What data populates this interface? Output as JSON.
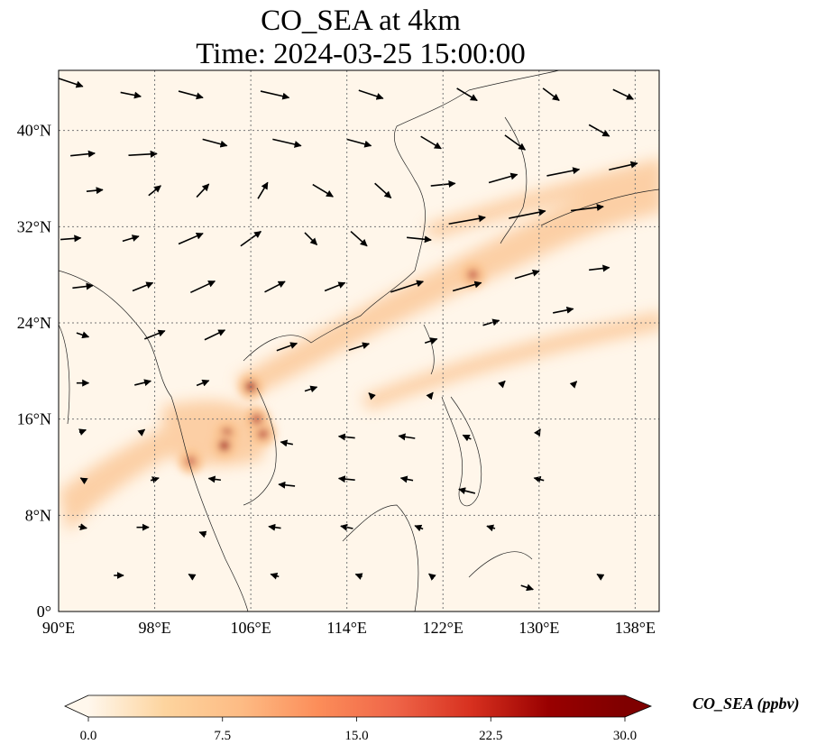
{
  "title": {
    "line1": "CO_SEA at 4km",
    "line2": "Time: 2024-03-25 15:00:00"
  },
  "map": {
    "lon_range": [
      90,
      140
    ],
    "lat_range": [
      0,
      45
    ],
    "lon_ticks": [
      {
        "value": 90,
        "label": "90°E"
      },
      {
        "value": 98,
        "label": "98°E"
      },
      {
        "value": 106,
        "label": "106°E"
      },
      {
        "value": 114,
        "label": "114°E"
      },
      {
        "value": 122,
        "label": "122°E"
      },
      {
        "value": 130,
        "label": "130°E"
      },
      {
        "value": 138,
        "label": "138°E"
      }
    ],
    "lat_ticks": [
      {
        "value": 0,
        "label": "0°"
      },
      {
        "value": 8,
        "label": "8°N"
      },
      {
        "value": 16,
        "label": "16°N"
      },
      {
        "value": 24,
        "label": "24°N"
      },
      {
        "value": 32,
        "label": "32°N"
      },
      {
        "value": 40,
        "label": "40°N"
      }
    ],
    "gridlines": true,
    "colormap": "OrRd",
    "background_color": "#fff6ea",
    "plume_color": "#fbc38f",
    "hotspot_color": "#a3191c",
    "hotspots": [
      {
        "lon": 106.0,
        "lat": 18.7,
        "intensity": 0.85
      },
      {
        "lon": 104.0,
        "lat": 14.8,
        "intensity": 0.75
      },
      {
        "lon": 103.8,
        "lat": 13.8,
        "intensity": 0.85
      },
      {
        "lon": 107.0,
        "lat": 14.8,
        "intensity": 0.65
      },
      {
        "lon": 106.5,
        "lat": 16.0,
        "intensity": 0.6
      },
      {
        "lon": 124.5,
        "lat": 28.0,
        "intensity": 0.5
      },
      {
        "lon": 101.0,
        "lat": 12.5,
        "intensity": 0.45
      }
    ],
    "winds": [
      {
        "lon": 91,
        "lat": 44,
        "u": 3,
        "v": -1
      },
      {
        "lon": 96,
        "lat": 43,
        "u": 2.5,
        "v": -0.5
      },
      {
        "lon": 101,
        "lat": 43,
        "u": 3,
        "v": -0.8
      },
      {
        "lon": 108,
        "lat": 43,
        "u": 3.5,
        "v": -0.8
      },
      {
        "lon": 116,
        "lat": 43,
        "u": 3,
        "v": -1
      },
      {
        "lon": 124,
        "lat": 43,
        "u": 2.5,
        "v": -1.5
      },
      {
        "lon": 131,
        "lat": 43,
        "u": 2,
        "v": -1.5
      },
      {
        "lon": 137,
        "lat": 43,
        "u": 2.5,
        "v": -1.2
      },
      {
        "lon": 92,
        "lat": 38,
        "u": 3,
        "v": 0.3
      },
      {
        "lon": 97,
        "lat": 38,
        "u": 3.5,
        "v": 0.2
      },
      {
        "lon": 103,
        "lat": 39,
        "u": 3,
        "v": -0.8
      },
      {
        "lon": 109,
        "lat": 39,
        "u": 3.5,
        "v": -0.8
      },
      {
        "lon": 115,
        "lat": 39,
        "u": 3,
        "v": -0.8
      },
      {
        "lon": 121,
        "lat": 39,
        "u": 2.5,
        "v": -1.5
      },
      {
        "lon": 128,
        "lat": 39,
        "u": 2.5,
        "v": -1.8
      },
      {
        "lon": 135,
        "lat": 40,
        "u": 2.5,
        "v": -1.4
      },
      {
        "lon": 93,
        "lat": 35,
        "u": 2,
        "v": 0.2
      },
      {
        "lon": 98,
        "lat": 35,
        "u": 1.5,
        "v": 1.2
      },
      {
        "lon": 102,
        "lat": 35,
        "u": 1.5,
        "v": 1.6
      },
      {
        "lon": 107,
        "lat": 35,
        "u": 1.2,
        "v": 2
      },
      {
        "lon": 112,
        "lat": 35,
        "u": 2.5,
        "v": -1.5
      },
      {
        "lon": 117,
        "lat": 35,
        "u": 2,
        "v": -1.8
      },
      {
        "lon": 122,
        "lat": 35.5,
        "u": 3,
        "v": 0.3
      },
      {
        "lon": 127,
        "lat": 36,
        "u": 3.5,
        "v": 1
      },
      {
        "lon": 132,
        "lat": 36.5,
        "u": 4,
        "v": 0.8
      },
      {
        "lon": 137,
        "lat": 37,
        "u": 3.5,
        "v": 0.8
      },
      {
        "lon": 91,
        "lat": 31,
        "u": 2.5,
        "v": 0.2
      },
      {
        "lon": 96,
        "lat": 31,
        "u": 2,
        "v": 0.6
      },
      {
        "lon": 101,
        "lat": 31,
        "u": 3,
        "v": 1.3
      },
      {
        "lon": 106,
        "lat": 31,
        "u": 2.5,
        "v": 1.8
      },
      {
        "lon": 111,
        "lat": 31,
        "u": 1.5,
        "v": -1.5
      },
      {
        "lon": 115,
        "lat": 31,
        "u": 2,
        "v": -1.8
      },
      {
        "lon": 120,
        "lat": 31,
        "u": 3,
        "v": -0.3
      },
      {
        "lon": 124,
        "lat": 32.5,
        "u": 4.5,
        "v": 0.8
      },
      {
        "lon": 129,
        "lat": 33,
        "u": 4.5,
        "v": 0.9
      },
      {
        "lon": 134,
        "lat": 33.5,
        "u": 4,
        "v": 0.5
      },
      {
        "lon": 92,
        "lat": 27,
        "u": 2.5,
        "v": 0.3
      },
      {
        "lon": 97,
        "lat": 27,
        "u": 2.5,
        "v": 1
      },
      {
        "lon": 102,
        "lat": 27,
        "u": 3,
        "v": 1.4
      },
      {
        "lon": 108,
        "lat": 27,
        "u": 2.5,
        "v": 1.3
      },
      {
        "lon": 113,
        "lat": 27,
        "u": 2.5,
        "v": 1
      },
      {
        "lon": 119,
        "lat": 27,
        "u": 4,
        "v": 1.3
      },
      {
        "lon": 124,
        "lat": 27,
        "u": 3.5,
        "v": 1
      },
      {
        "lon": 129,
        "lat": 28,
        "u": 3,
        "v": 0.9
      },
      {
        "lon": 135,
        "lat": 28.5,
        "u": 2.5,
        "v": 0.3
      },
      {
        "lon": 92,
        "lat": 23,
        "u": 1.5,
        "v": -0.5
      },
      {
        "lon": 98,
        "lat": 23,
        "u": 2.5,
        "v": 1
      },
      {
        "lon": 103,
        "lat": 23,
        "u": 2.5,
        "v": 1.2
      },
      {
        "lon": 109,
        "lat": 22,
        "u": 2.5,
        "v": 0.9
      },
      {
        "lon": 115,
        "lat": 22,
        "u": 2.5,
        "v": 0.8
      },
      {
        "lon": 121,
        "lat": 22.5,
        "u": 1.5,
        "v": 0.5
      },
      {
        "lon": 126,
        "lat": 24,
        "u": 2,
        "v": 0.6
      },
      {
        "lon": 132,
        "lat": 25,
        "u": 2.5,
        "v": 0.5
      },
      {
        "lon": 92,
        "lat": 19,
        "u": 1.5,
        "v": 0
      },
      {
        "lon": 97,
        "lat": 19,
        "u": 2,
        "v": 0.5
      },
      {
        "lon": 102,
        "lat": 19,
        "u": 1.5,
        "v": 0.6
      },
      {
        "lon": 111,
        "lat": 18.5,
        "u": 1.5,
        "v": 0.5
      },
      {
        "lon": 116,
        "lat": 18,
        "u": -0.5,
        "v": 0.5
      },
      {
        "lon": 121,
        "lat": 18,
        "u": 0.5,
        "v": 0.6
      },
      {
        "lon": 127,
        "lat": 19,
        "u": 0.5,
        "v": 0.5
      },
      {
        "lon": 133,
        "lat": 19,
        "u": 0.4,
        "v": 0.4
      },
      {
        "lon": 92,
        "lat": 15,
        "u": 0.8,
        "v": 0.3
      },
      {
        "lon": 97,
        "lat": 15,
        "u": 0.5,
        "v": 0.4
      },
      {
        "lon": 109,
        "lat": 14,
        "u": -1.5,
        "v": 0.3
      },
      {
        "lon": 114,
        "lat": 14.5,
        "u": -2,
        "v": 0.2
      },
      {
        "lon": 119,
        "lat": 14.5,
        "u": -2,
        "v": 0.3
      },
      {
        "lon": 124,
        "lat": 14.5,
        "u": -1,
        "v": 0.5
      },
      {
        "lon": 130,
        "lat": 15,
        "u": 0.3,
        "v": 0.5
      },
      {
        "lon": 92,
        "lat": 11,
        "u": -0.5,
        "v": 0.3
      },
      {
        "lon": 98,
        "lat": 11,
        "u": 1,
        "v": 0.3
      },
      {
        "lon": 103,
        "lat": 11,
        "u": -1.5,
        "v": 0.2
      },
      {
        "lon": 109,
        "lat": 10.5,
        "u": -2,
        "v": 0.2
      },
      {
        "lon": 114,
        "lat": 11,
        "u": -2,
        "v": 0.2
      },
      {
        "lon": 119,
        "lat": 11,
        "u": -1.5,
        "v": 0.3
      },
      {
        "lon": 124,
        "lat": 10,
        "u": -2,
        "v": 0.5
      },
      {
        "lon": 130,
        "lat": 11,
        "u": -1.2,
        "v": 0.3
      },
      {
        "lon": 92,
        "lat": 7,
        "u": 1,
        "v": -0.2
      },
      {
        "lon": 97,
        "lat": 7,
        "u": 1.5,
        "v": 0
      },
      {
        "lon": 102,
        "lat": 6.5,
        "u": -0.8,
        "v": 0.3
      },
      {
        "lon": 108,
        "lat": 7,
        "u": -1.5,
        "v": 0.2
      },
      {
        "lon": 114,
        "lat": 7,
        "u": -1.5,
        "v": 0.3
      },
      {
        "lon": 120,
        "lat": 7,
        "u": -1,
        "v": 0.4
      },
      {
        "lon": 126,
        "lat": 7,
        "u": -1,
        "v": 0.3
      },
      {
        "lon": 95,
        "lat": 3,
        "u": 1.2,
        "v": 0
      },
      {
        "lon": 101,
        "lat": 3,
        "u": -0.5,
        "v": 0.3
      },
      {
        "lon": 108,
        "lat": 3,
        "u": -1,
        "v": 0.3
      },
      {
        "lon": 115,
        "lat": 3,
        "u": -0.8,
        "v": 0.3
      },
      {
        "lon": 121,
        "lat": 3,
        "u": -0.5,
        "v": 0.4
      },
      {
        "lon": 129,
        "lat": 2,
        "u": 1.5,
        "v": -0.5
      },
      {
        "lon": 135,
        "lat": 3,
        "u": -0.5,
        "v": 0.3
      }
    ]
  },
  "colorbar": {
    "label": "CO_SEA (ppbv)",
    "min": 0,
    "max": 30,
    "ticks": [
      "0.0",
      "7.5",
      "15.0",
      "22.5",
      "30.0"
    ],
    "extend": "both",
    "stops": [
      "#fff7ec",
      "#fdd49e",
      "#fdbb84",
      "#fc8d59",
      "#ef6548",
      "#d7301f",
      "#990000",
      "#7f0000"
    ]
  }
}
